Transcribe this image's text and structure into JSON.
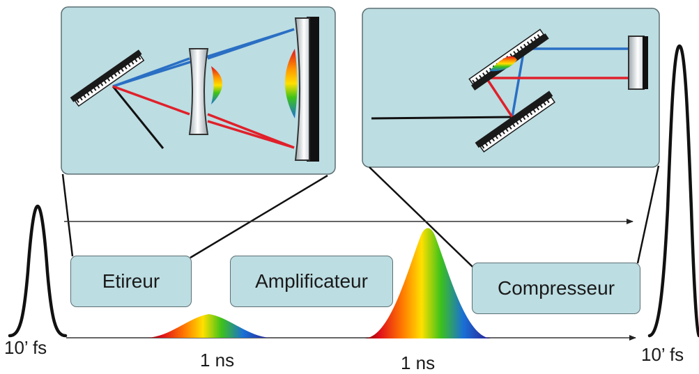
{
  "stages": {
    "stretcher": "Etireur",
    "amplifier": "Amplificateur",
    "compressor": "Compresseur"
  },
  "pulses": {
    "input_duration": "10’ fs",
    "stretched_duration": "1 ns",
    "amplified_duration": "1 ns",
    "output_duration": "10’ fs"
  },
  "colors": {
    "panel_fill": "#bcdde2",
    "panel_border": "#5b6e72",
    "blue_ray": "#2a6fc4",
    "red_ray": "#e0202a",
    "grating": "#1a1a1a"
  }
}
